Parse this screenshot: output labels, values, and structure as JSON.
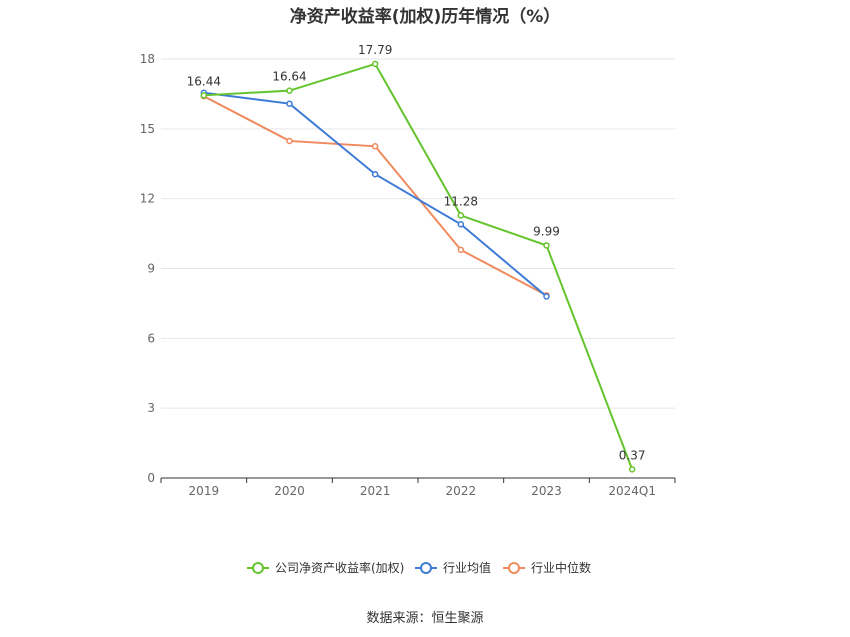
{
  "chart_data": {
    "type": "line",
    "title": "净资产收益率(加权)历年情况（%）",
    "categories": [
      "2019",
      "2020",
      "2021",
      "2022",
      "2023",
      "2024Q1"
    ],
    "ylim": [
      0,
      18
    ],
    "yticks": [
      0,
      3,
      6,
      9,
      12,
      15,
      18
    ],
    "grid": true,
    "legend_position": "bottom",
    "series": [
      {
        "name": "公司净资产收益率(加权)",
        "color": "#64c42d",
        "values": [
          16.44,
          16.64,
          17.79,
          11.28,
          9.99,
          0.37
        ],
        "labeled": true
      },
      {
        "name": "行业均值",
        "color": "#3e7bd6",
        "values": [
          16.55,
          16.08,
          13.05,
          10.9,
          7.8,
          null
        ],
        "labeled": false
      },
      {
        "name": "行业中位数",
        "color": "#f08a5d",
        "values": [
          16.4,
          14.48,
          14.25,
          9.8,
          7.85,
          null
        ],
        "labeled": false
      }
    ]
  },
  "source": "数据来源：恒生聚源"
}
